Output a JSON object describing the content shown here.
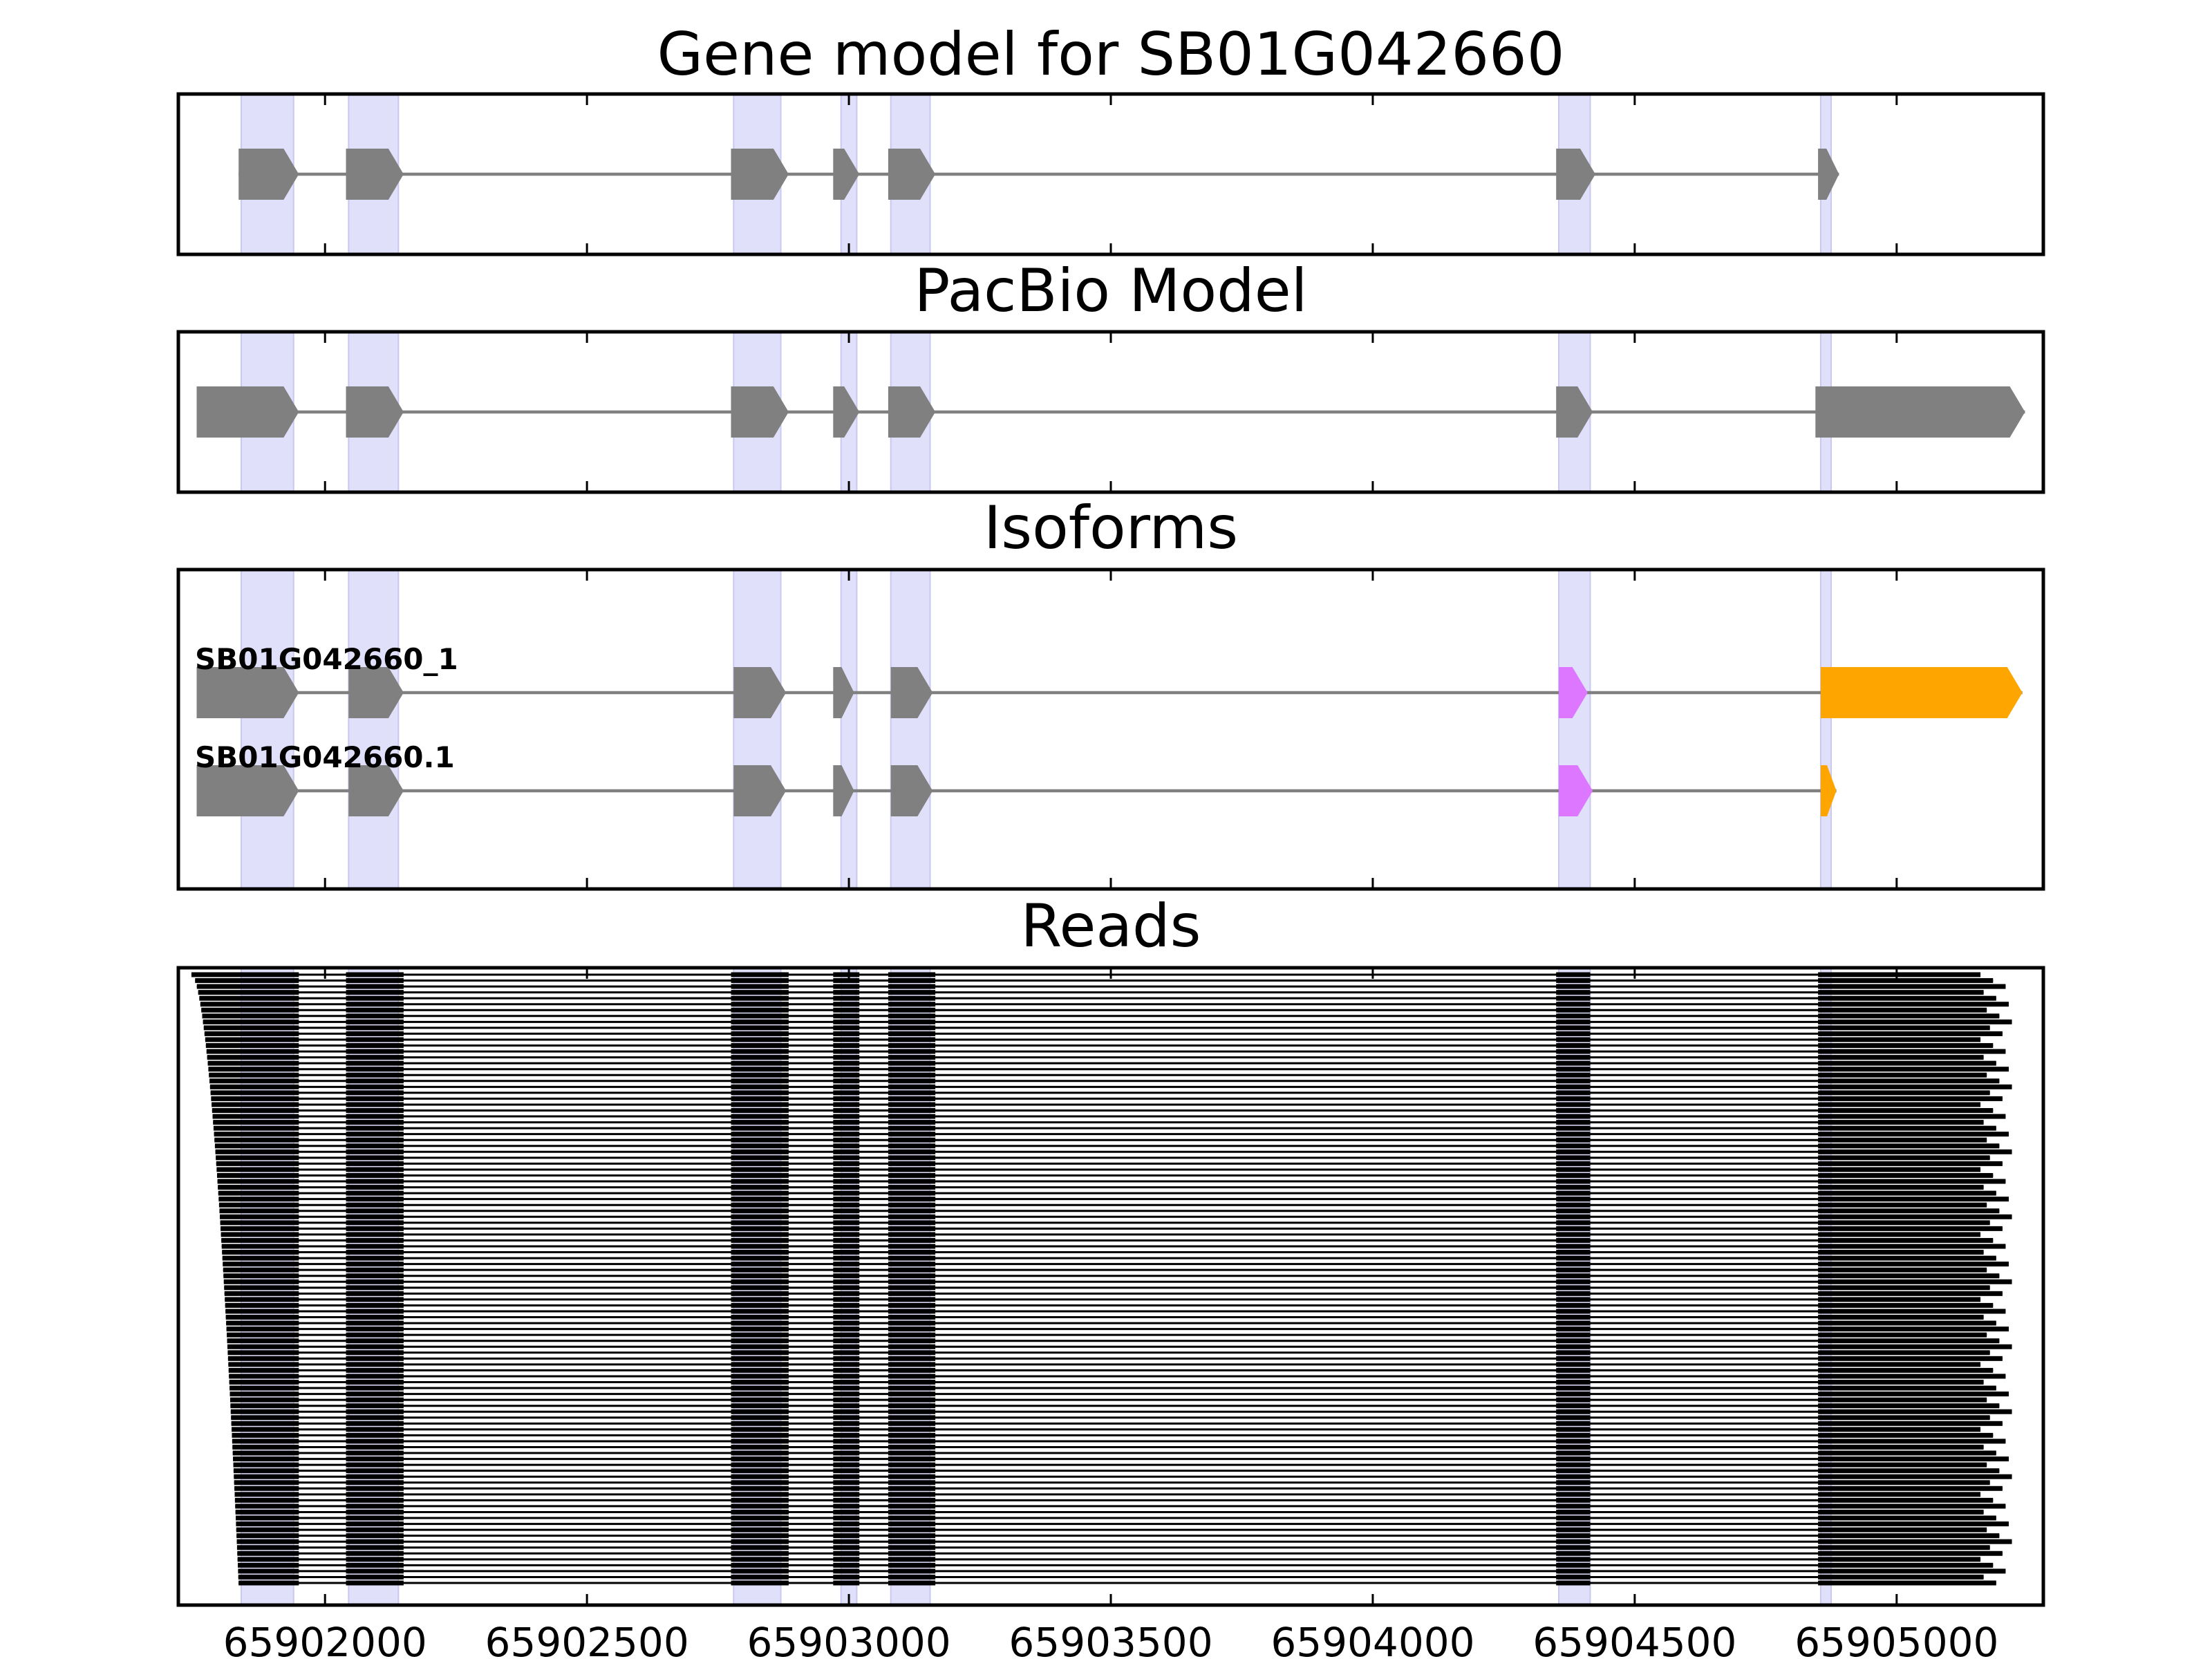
{
  "chart_data": {
    "type": "gene-track",
    "xlim": [
      65901720,
      65905280
    ],
    "xticks": [
      65902000,
      65902500,
      65903000,
      65903500,
      65904000,
      65904500,
      65905000
    ],
    "xtick_labels": [
      "65902000",
      "65902500",
      "65903000",
      "65903500",
      "65904000",
      "65904500",
      "65905000"
    ],
    "highlight_exons": [
      [
        65901840,
        65901940
      ],
      [
        65902045,
        65902140
      ],
      [
        65902780,
        65902870
      ],
      [
        65902985,
        65903015
      ],
      [
        65903080,
        65903155
      ],
      [
        65904355,
        65904415
      ],
      [
        65904855,
        65904875
      ]
    ],
    "colors": {
      "exon": "#808080",
      "intron": "#808080",
      "highlight": "#e0e0fb",
      "utr5": "#808080",
      "cds_variant": "#dd77ff",
      "utr3": "#ffa500",
      "read": "#000000"
    },
    "panels": [
      {
        "title": "Gene model for SB01G042660",
        "tracks": [
          {
            "label": "",
            "exons": [
              {
                "start": 65901835,
                "end": 65901950,
                "color": "#808080"
              },
              {
                "start": 65902040,
                "end": 65902150,
                "color": "#808080"
              },
              {
                "start": 65902775,
                "end": 65902885,
                "color": "#808080"
              },
              {
                "start": 65902970,
                "end": 65903020,
                "color": "#808080"
              },
              {
                "start": 65903075,
                "end": 65903165,
                "color": "#808080"
              },
              {
                "start": 65904350,
                "end": 65904425,
                "color": "#808080"
              },
              {
                "start": 65904850,
                "end": 65904890,
                "color": "#808080"
              }
            ]
          }
        ]
      },
      {
        "title": "PacBio Model",
        "tracks": [
          {
            "label": "",
            "exons": [
              {
                "start": 65901755,
                "end": 65901950,
                "color": "#808080"
              },
              {
                "start": 65902040,
                "end": 65902150,
                "color": "#808080"
              },
              {
                "start": 65902775,
                "end": 65902885,
                "color": "#808080"
              },
              {
                "start": 65902970,
                "end": 65903020,
                "color": "#808080"
              },
              {
                "start": 65903075,
                "end": 65903165,
                "color": "#808080"
              },
              {
                "start": 65904350,
                "end": 65904420,
                "color": "#808080"
              },
              {
                "start": 65904845,
                "end": 65905245,
                "color": "#808080"
              }
            ]
          }
        ]
      },
      {
        "title": "Isoforms",
        "tracks": [
          {
            "label": "SB01G042660_1",
            "exons": [
              {
                "start": 65901755,
                "end": 65901950,
                "color": "#808080"
              },
              {
                "start": 65902045,
                "end": 65902150,
                "color": "#808080"
              },
              {
                "start": 65902780,
                "end": 65902880,
                "color": "#808080"
              },
              {
                "start": 65902970,
                "end": 65903010,
                "color": "#808080"
              },
              {
                "start": 65903080,
                "end": 65903160,
                "color": "#808080"
              },
              {
                "start": 65904355,
                "end": 65904410,
                "color": "#dd77ff"
              },
              {
                "start": 65904855,
                "end": 65905240,
                "color": "#ffa500"
              }
            ]
          },
          {
            "label": "SB01G042660.1",
            "exons": [
              {
                "start": 65901755,
                "end": 65901950,
                "color": "#808080"
              },
              {
                "start": 65902045,
                "end": 65902150,
                "color": "#808080"
              },
              {
                "start": 65902780,
                "end": 65902880,
                "color": "#808080"
              },
              {
                "start": 65902970,
                "end": 65903010,
                "color": "#808080"
              },
              {
                "start": 65903080,
                "end": 65903160,
                "color": "#808080"
              },
              {
                "start": 65904355,
                "end": 65904420,
                "color": "#dd77ff"
              },
              {
                "start": 65904855,
                "end": 65904885,
                "color": "#ffa500"
              }
            ]
          }
        ]
      },
      {
        "title": "Reads",
        "read_count": 104,
        "read_first_start": 65901745,
        "read_last_start": 65901835,
        "read_end_min": 65905160,
        "read_end_max": 65905220,
        "read_blocks": [
          [
            65901950,
            65902040
          ],
          [
            65902150,
            65902775
          ],
          [
            65902885,
            65902970
          ],
          [
            65903020,
            65903075
          ],
          [
            65903165,
            65904350
          ],
          [
            65904415,
            65904850
          ]
        ]
      }
    ]
  }
}
